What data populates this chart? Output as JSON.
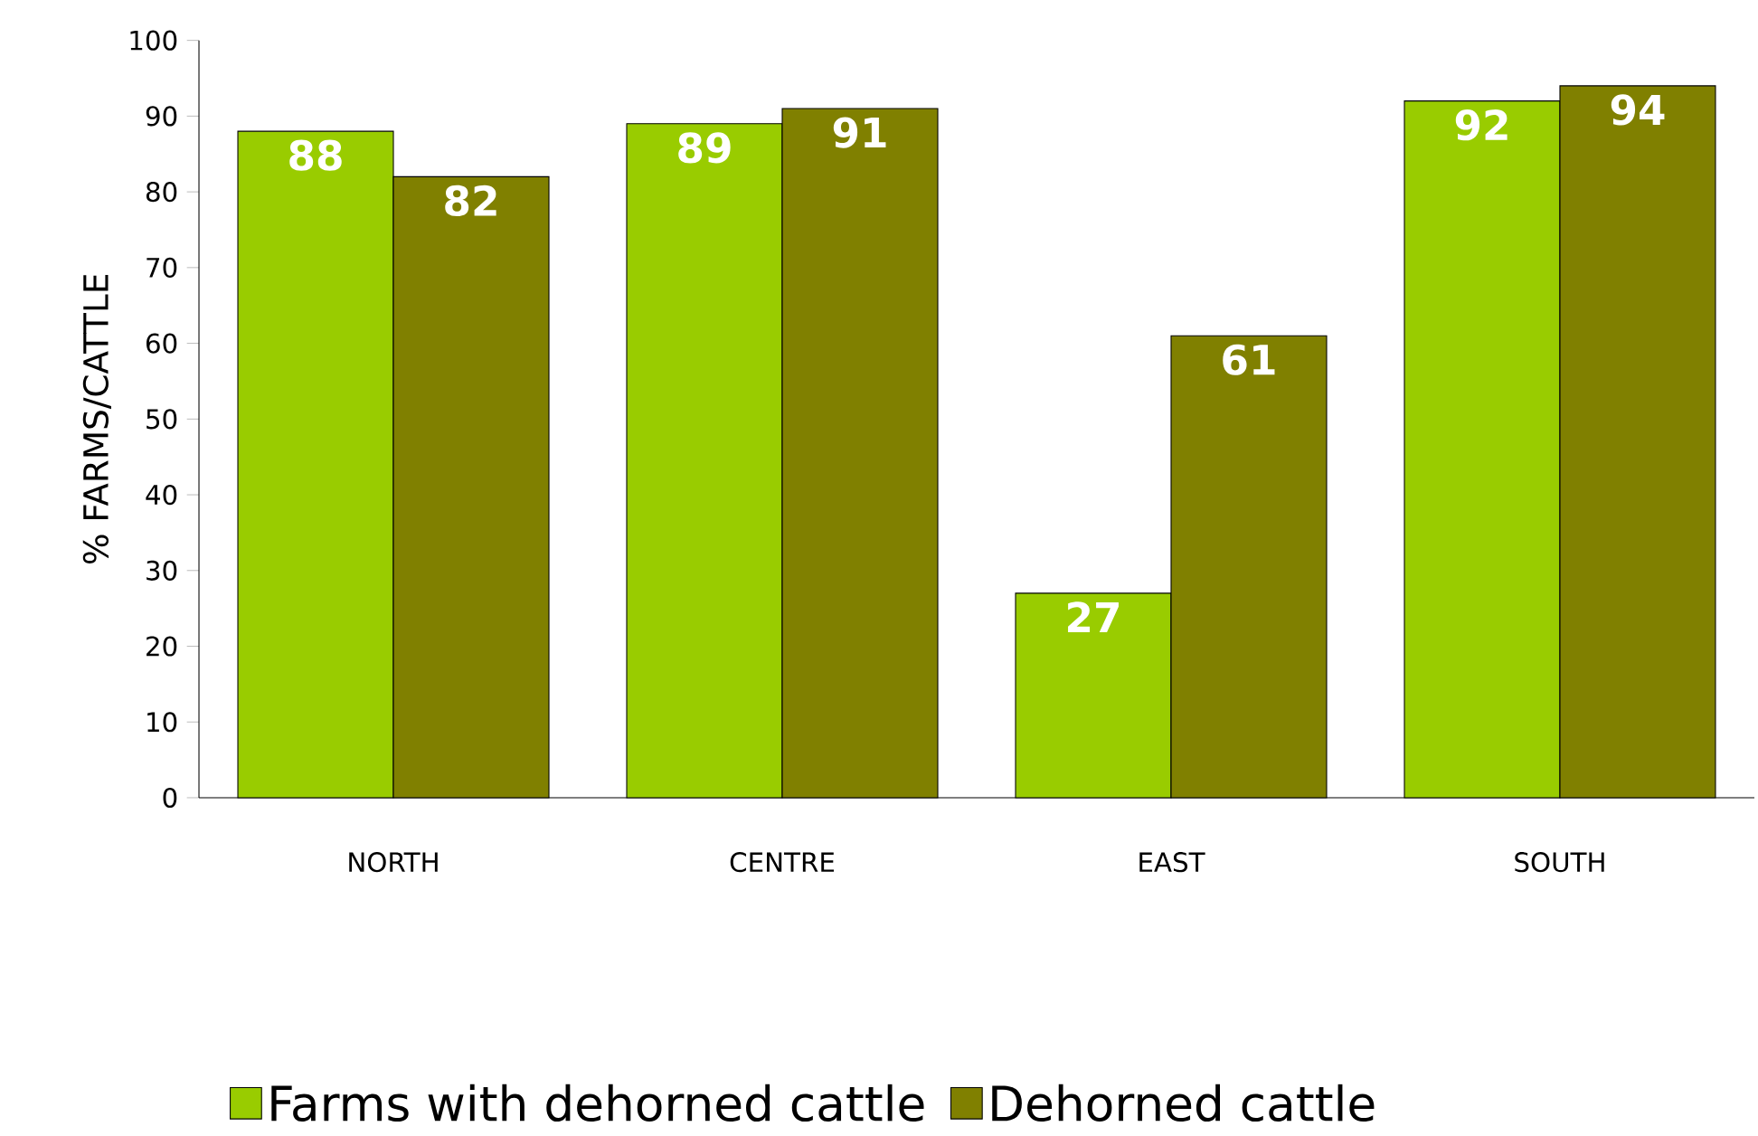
{
  "chart_data": {
    "type": "bar",
    "ylabel": "% FARMS/CATTLE",
    "categories": [
      "NORTH",
      "CENTRE",
      "EAST",
      "SOUTH"
    ],
    "series": [
      {
        "name": "Farms with dehorned cattle",
        "color": "#99cc00",
        "values": [
          88,
          89,
          27,
          92
        ]
      },
      {
        "name": "Dehorned cattle",
        "color": "#808000",
        "values": [
          82,
          91,
          61,
          94
        ]
      }
    ],
    "ylim": [
      0,
      100
    ],
    "yticks": [
      0,
      10,
      20,
      30,
      40,
      50,
      60,
      70,
      80,
      90,
      100
    ],
    "data_labels": true,
    "legend": "bottom",
    "grid": false
  }
}
